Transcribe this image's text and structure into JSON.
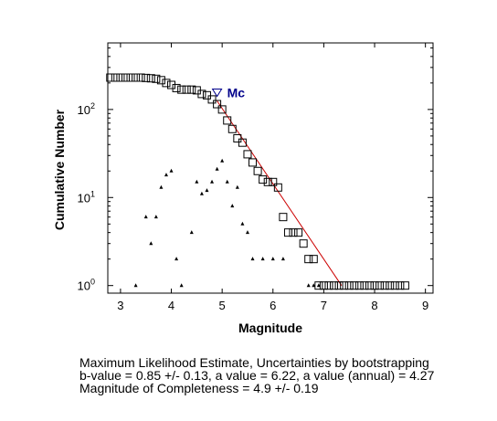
{
  "chart_data": {
    "type": "scatter",
    "xlabel": "Magnitude",
    "ylabel": "Cumulative Number",
    "xlim": [
      2.75,
      9.15
    ],
    "ylim": [
      0.82,
      570
    ],
    "yscale": "log",
    "xticks": [
      3,
      4,
      5,
      6,
      7,
      8,
      9
    ],
    "yticks": [
      {
        "value": 1,
        "base": "10",
        "exp": "0"
      },
      {
        "value": 10,
        "base": "10",
        "exp": "1"
      },
      {
        "value": 100,
        "base": "10",
        "exp": "2"
      }
    ],
    "grid": false,
    "mc_marker": {
      "label": "Mc",
      "x": 4.9,
      "y": 155,
      "color": "#00008b"
    },
    "series": [
      {
        "marker": "open-square",
        "color": "#000000",
        "points": [
          [
            2.8,
            230
          ],
          [
            2.9,
            230
          ],
          [
            3.0,
            230
          ],
          [
            3.1,
            230
          ],
          [
            3.2,
            230
          ],
          [
            3.3,
            230
          ],
          [
            3.4,
            230
          ],
          [
            3.5,
            228
          ],
          [
            3.6,
            226
          ],
          [
            3.7,
            223
          ],
          [
            3.8,
            215
          ],
          [
            3.9,
            200
          ],
          [
            4.0,
            190
          ],
          [
            4.1,
            175
          ],
          [
            4.2,
            168
          ],
          [
            4.3,
            168
          ],
          [
            4.4,
            168
          ],
          [
            4.5,
            165
          ],
          [
            4.6,
            150
          ],
          [
            4.7,
            145
          ],
          [
            4.8,
            130
          ],
          [
            4.9,
            115
          ],
          [
            5.0,
            100
          ],
          [
            5.1,
            75
          ],
          [
            5.2,
            60
          ],
          [
            5.3,
            47
          ],
          [
            5.4,
            42
          ],
          [
            5.5,
            31
          ],
          [
            5.6,
            25
          ],
          [
            5.7,
            20
          ],
          [
            5.8,
            16
          ],
          [
            5.9,
            15
          ],
          [
            6.0,
            15
          ],
          [
            6.1,
            13
          ],
          [
            6.2,
            6
          ],
          [
            6.3,
            4
          ],
          [
            6.4,
            4
          ],
          [
            6.5,
            4
          ],
          [
            6.6,
            3
          ],
          [
            6.7,
            2
          ],
          [
            6.8,
            2
          ],
          [
            6.9,
            1
          ],
          [
            7.0,
            1
          ],
          [
            7.1,
            1
          ],
          [
            7.2,
            1
          ],
          [
            7.3,
            1
          ],
          [
            7.4,
            1
          ],
          [
            7.5,
            1
          ],
          [
            7.6,
            1
          ],
          [
            7.7,
            1
          ],
          [
            7.8,
            1
          ],
          [
            7.9,
            1
          ],
          [
            8.0,
            1
          ],
          [
            8.1,
            1
          ],
          [
            8.2,
            1
          ],
          [
            8.3,
            1
          ],
          [
            8.4,
            1
          ],
          [
            8.5,
            1
          ],
          [
            8.6,
            1
          ]
        ]
      },
      {
        "marker": "filled-triangle",
        "color": "#000000",
        "points": [
          [
            3.3,
            1
          ],
          [
            3.5,
            6
          ],
          [
            3.6,
            3
          ],
          [
            3.7,
            6
          ],
          [
            3.8,
            13
          ],
          [
            3.9,
            18
          ],
          [
            4.0,
            20
          ],
          [
            4.1,
            2
          ],
          [
            4.2,
            1
          ],
          [
            4.4,
            4
          ],
          [
            4.5,
            15
          ],
          [
            4.6,
            11
          ],
          [
            4.7,
            12
          ],
          [
            4.8,
            15
          ],
          [
            4.9,
            21
          ],
          [
            5.0,
            26
          ],
          [
            5.1,
            15
          ],
          [
            5.2,
            8
          ],
          [
            5.3,
            13
          ],
          [
            5.4,
            5
          ],
          [
            5.5,
            4
          ],
          [
            5.6,
            2
          ],
          [
            5.8,
            2
          ],
          [
            6.0,
            2
          ],
          [
            6.2,
            2
          ],
          [
            6.7,
            1
          ],
          [
            6.8,
            1
          ],
          [
            6.9,
            1
          ]
        ]
      },
      {
        "marker": "line",
        "color": "#cc0000",
        "points": [
          [
            4.9,
            125
          ],
          [
            7.35,
            1
          ]
        ]
      }
    ]
  },
  "caption": {
    "line1": "Maximum Likelihood Estimate, Uncertainties by bootstrapping",
    "line2": "b-value = 0.85 +/- 0.13,  a value = 6.22,  a value (annual) = 4.27",
    "line3": "Magnitude of Completeness = 4.9 +/- 0.19"
  }
}
